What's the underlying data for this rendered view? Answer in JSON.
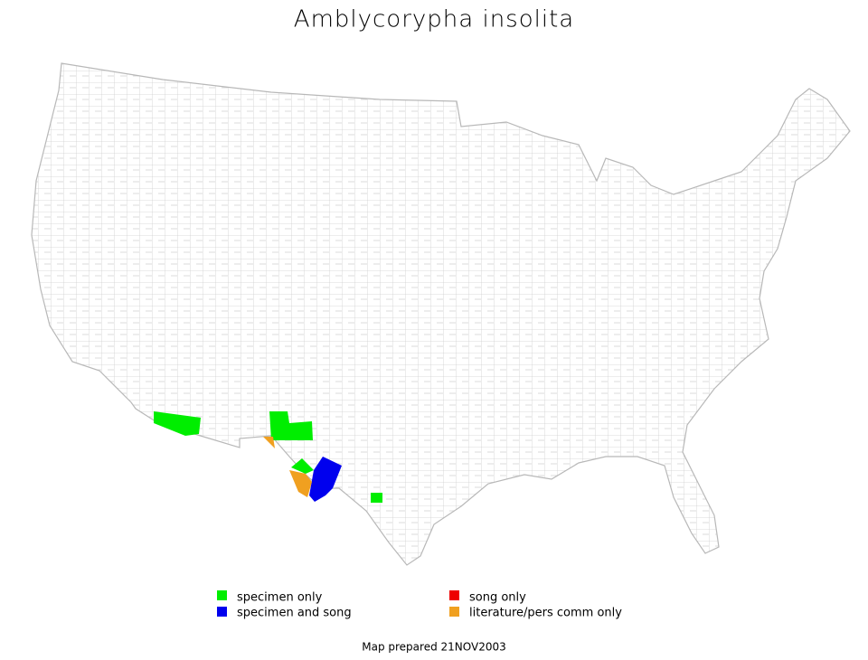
{
  "title": "Amblycorypha insolita",
  "legend": {
    "items": [
      {
        "label": "specimen only",
        "color": "#00ee00"
      },
      {
        "label": "specimen and song",
        "color": "#0000ee"
      },
      {
        "label": "song only",
        "color": "#ee0000"
      },
      {
        "label": "literature/pers comm only",
        "color": "#f0a020"
      }
    ]
  },
  "footer": "Map prepared 21NOV2003"
}
